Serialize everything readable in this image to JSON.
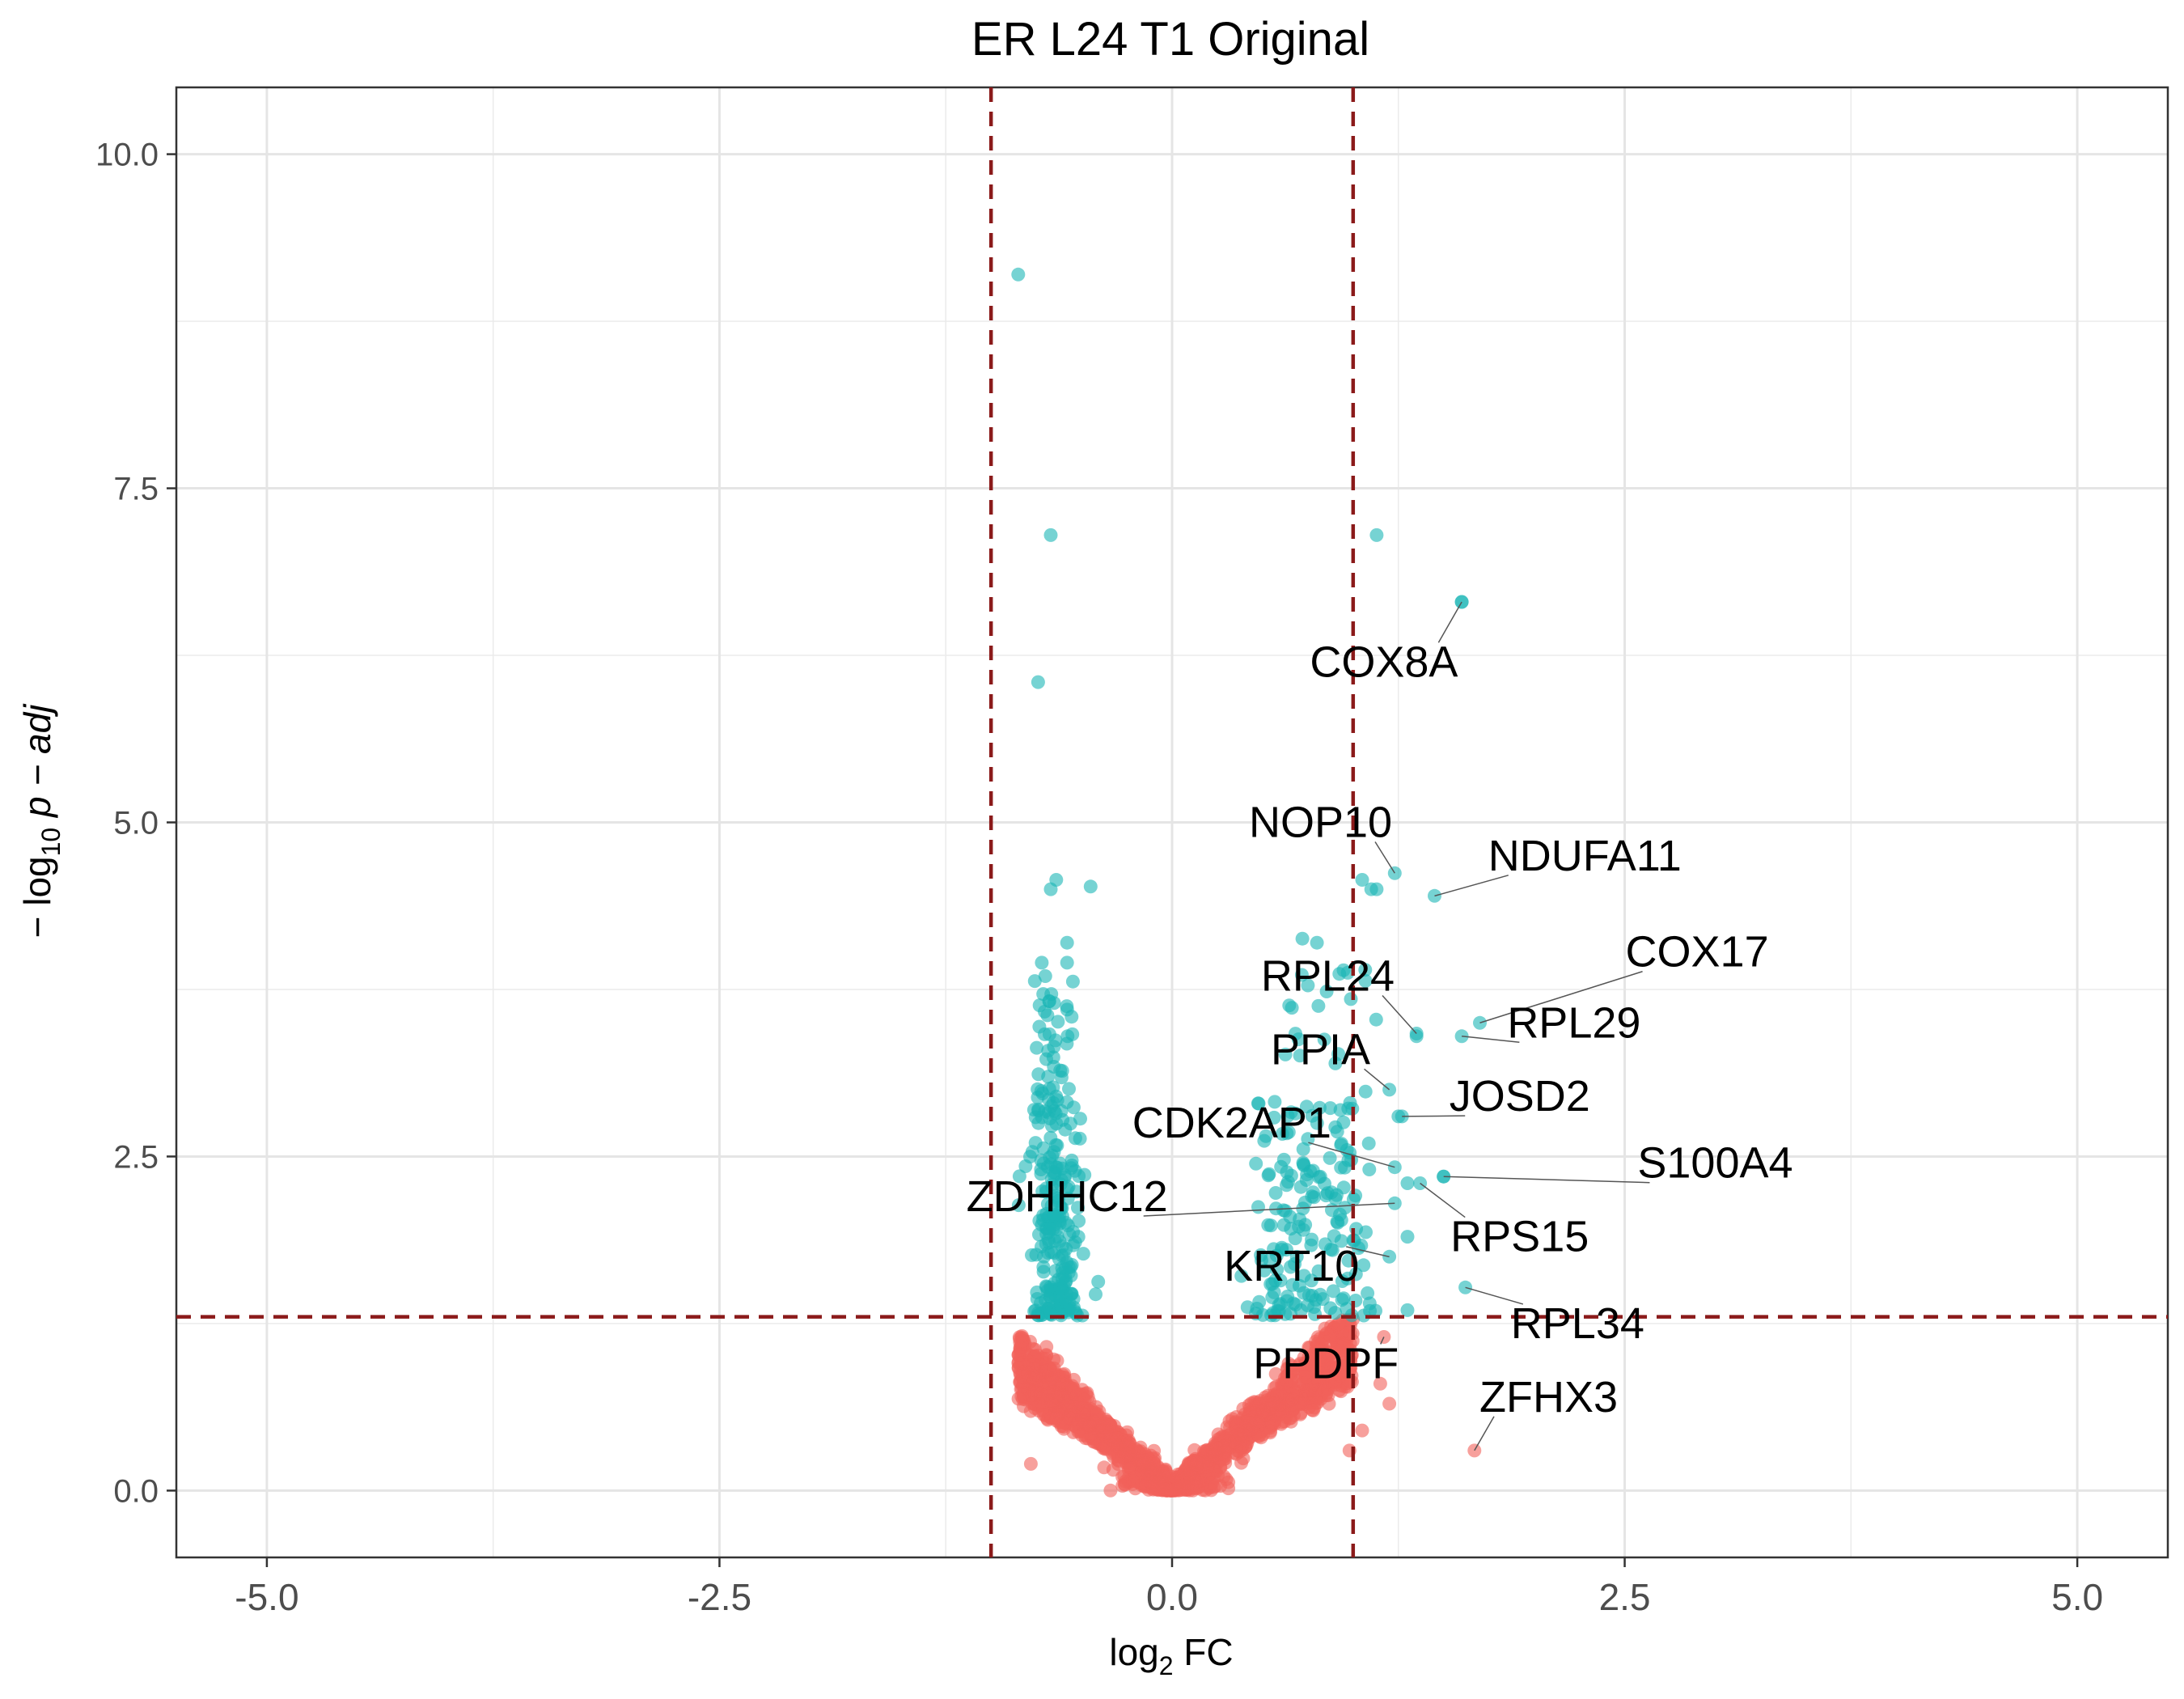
{
  "chart_data": {
    "type": "scatter",
    "title": "ER L24 T1 Original",
    "xlabel": {
      "base": "log",
      "sub": "2",
      "rest": " FC"
    },
    "ylabel": {
      "pre": "− log",
      "sub": "10",
      "rest": " p − adj"
    },
    "xlim": [
      -5.5,
      5.5
    ],
    "ylim": [
      -0.5,
      10.5
    ],
    "x_ticks": [
      -5.0,
      -2.5,
      0.0,
      2.5,
      5.0
    ],
    "x_tick_labels": [
      "-5.0",
      "-2.5",
      "0.0",
      "2.5",
      "5.0"
    ],
    "y_ticks": [
      0.0,
      2.5,
      5.0,
      7.5,
      10.0
    ],
    "y_tick_labels": [
      "0.0",
      "2.5",
      "5.0",
      "7.5",
      "10.0"
    ],
    "grid": true,
    "thresholds": {
      "x": [
        -1,
        1
      ],
      "y": 1.3,
      "color": "#8b1a1a"
    },
    "colors": {
      "significant": "#1ab5b5",
      "not_significant": "#f2605a"
    },
    "highlight_points": [
      {
        "x": -0.85,
        "y": 9.1
      },
      {
        "x": -0.67,
        "y": 7.15
      },
      {
        "x": -0.74,
        "y": 6.05
      },
      {
        "x": 1.13,
        "y": 7.15
      },
      {
        "x": 1.6,
        "y": 6.65
      },
      {
        "x": -0.64,
        "y": 4.57
      },
      {
        "x": -0.67,
        "y": 4.5
      },
      {
        "x": -0.45,
        "y": 4.52
      },
      {
        "x": 1.05,
        "y": 4.57
      },
      {
        "x": 1.1,
        "y": 4.5
      },
      {
        "x": 1.13,
        "y": 4.5
      },
      {
        "x": 0.8,
        "y": 4.1
      },
      {
        "x": 0.72,
        "y": 4.13
      },
      {
        "x": -0.58,
        "y": 4.1
      },
      {
        "x": -0.58,
        "y": 3.95
      },
      {
        "x": -0.72,
        "y": 3.95
      },
      {
        "x": -0.7,
        "y": 3.85
      },
      {
        "x": 0.75,
        "y": 3.78
      },
      {
        "x": 1.35,
        "y": 3.4
      },
      {
        "x": 1.25,
        "y": 2.8
      },
      {
        "x": 1.3,
        "y": 2.3
      },
      {
        "x": 1.5,
        "y": 2.35
      },
      {
        "x": 1.3,
        "y": 1.9
      },
      {
        "x": 1.3,
        "y": 1.35
      },
      {
        "x": 1.15,
        "y": 0.8
      },
      {
        "x": 1.2,
        "y": 0.65
      },
      {
        "x": 1.05,
        "y": 0.45
      },
      {
        "x": 0.98,
        "y": 0.3
      },
      {
        "x": -0.78,
        "y": 0.2
      }
    ],
    "labeled_genes": [
      {
        "label": "COX8A",
        "x": 1.6,
        "y": 6.65,
        "text_x": 1.17,
        "text_y": 6.2
      },
      {
        "label": "NOP10",
        "x": 1.23,
        "y": 4.62,
        "text_x": 0.82,
        "text_y": 5.0
      },
      {
        "label": "NDUFA11",
        "x": 1.45,
        "y": 4.45,
        "text_x": 2.28,
        "text_y": 4.75
      },
      {
        "label": "COX17",
        "x": 1.7,
        "y": 3.5,
        "text_x": 2.9,
        "text_y": 4.03
      },
      {
        "label": "RPL29",
        "x": 1.6,
        "y": 3.4,
        "text_x": 2.22,
        "text_y": 3.5
      },
      {
        "label": "RPL24",
        "x": 1.35,
        "y": 3.42,
        "text_x": 0.86,
        "text_y": 3.85
      },
      {
        "label": "PPIA",
        "x": 1.2,
        "y": 3.0,
        "text_x": 0.82,
        "text_y": 3.3
      },
      {
        "label": "JOSD2",
        "x": 1.27,
        "y": 2.8,
        "text_x": 1.92,
        "text_y": 2.95
      },
      {
        "label": "CDK2AP1",
        "x": 1.23,
        "y": 2.42,
        "text_x": 0.33,
        "text_y": 2.75
      },
      {
        "label": "S100A4",
        "x": 1.5,
        "y": 2.35,
        "text_x": 3.0,
        "text_y": 2.45
      },
      {
        "label": "ZDHHC12",
        "x": 1.23,
        "y": 2.15,
        "text_x": -0.58,
        "text_y": 2.2
      },
      {
        "label": "RPS15",
        "x": 1.37,
        "y": 2.3,
        "text_x": 1.92,
        "text_y": 1.9
      },
      {
        "label": "KRT10",
        "x": 1.2,
        "y": 1.75,
        "text_x": 0.66,
        "text_y": 1.68
      },
      {
        "label": "RPL34",
        "x": 1.62,
        "y": 1.52,
        "text_x": 2.24,
        "text_y": 1.25
      },
      {
        "label": "PPDPF",
        "x": 1.17,
        "y": 1.15,
        "text_x": 0.85,
        "text_y": 0.95
      },
      {
        "label": "ZFHX3",
        "x": 1.67,
        "y": 0.3,
        "text_x": 2.08,
        "text_y": 0.7
      }
    ]
  }
}
